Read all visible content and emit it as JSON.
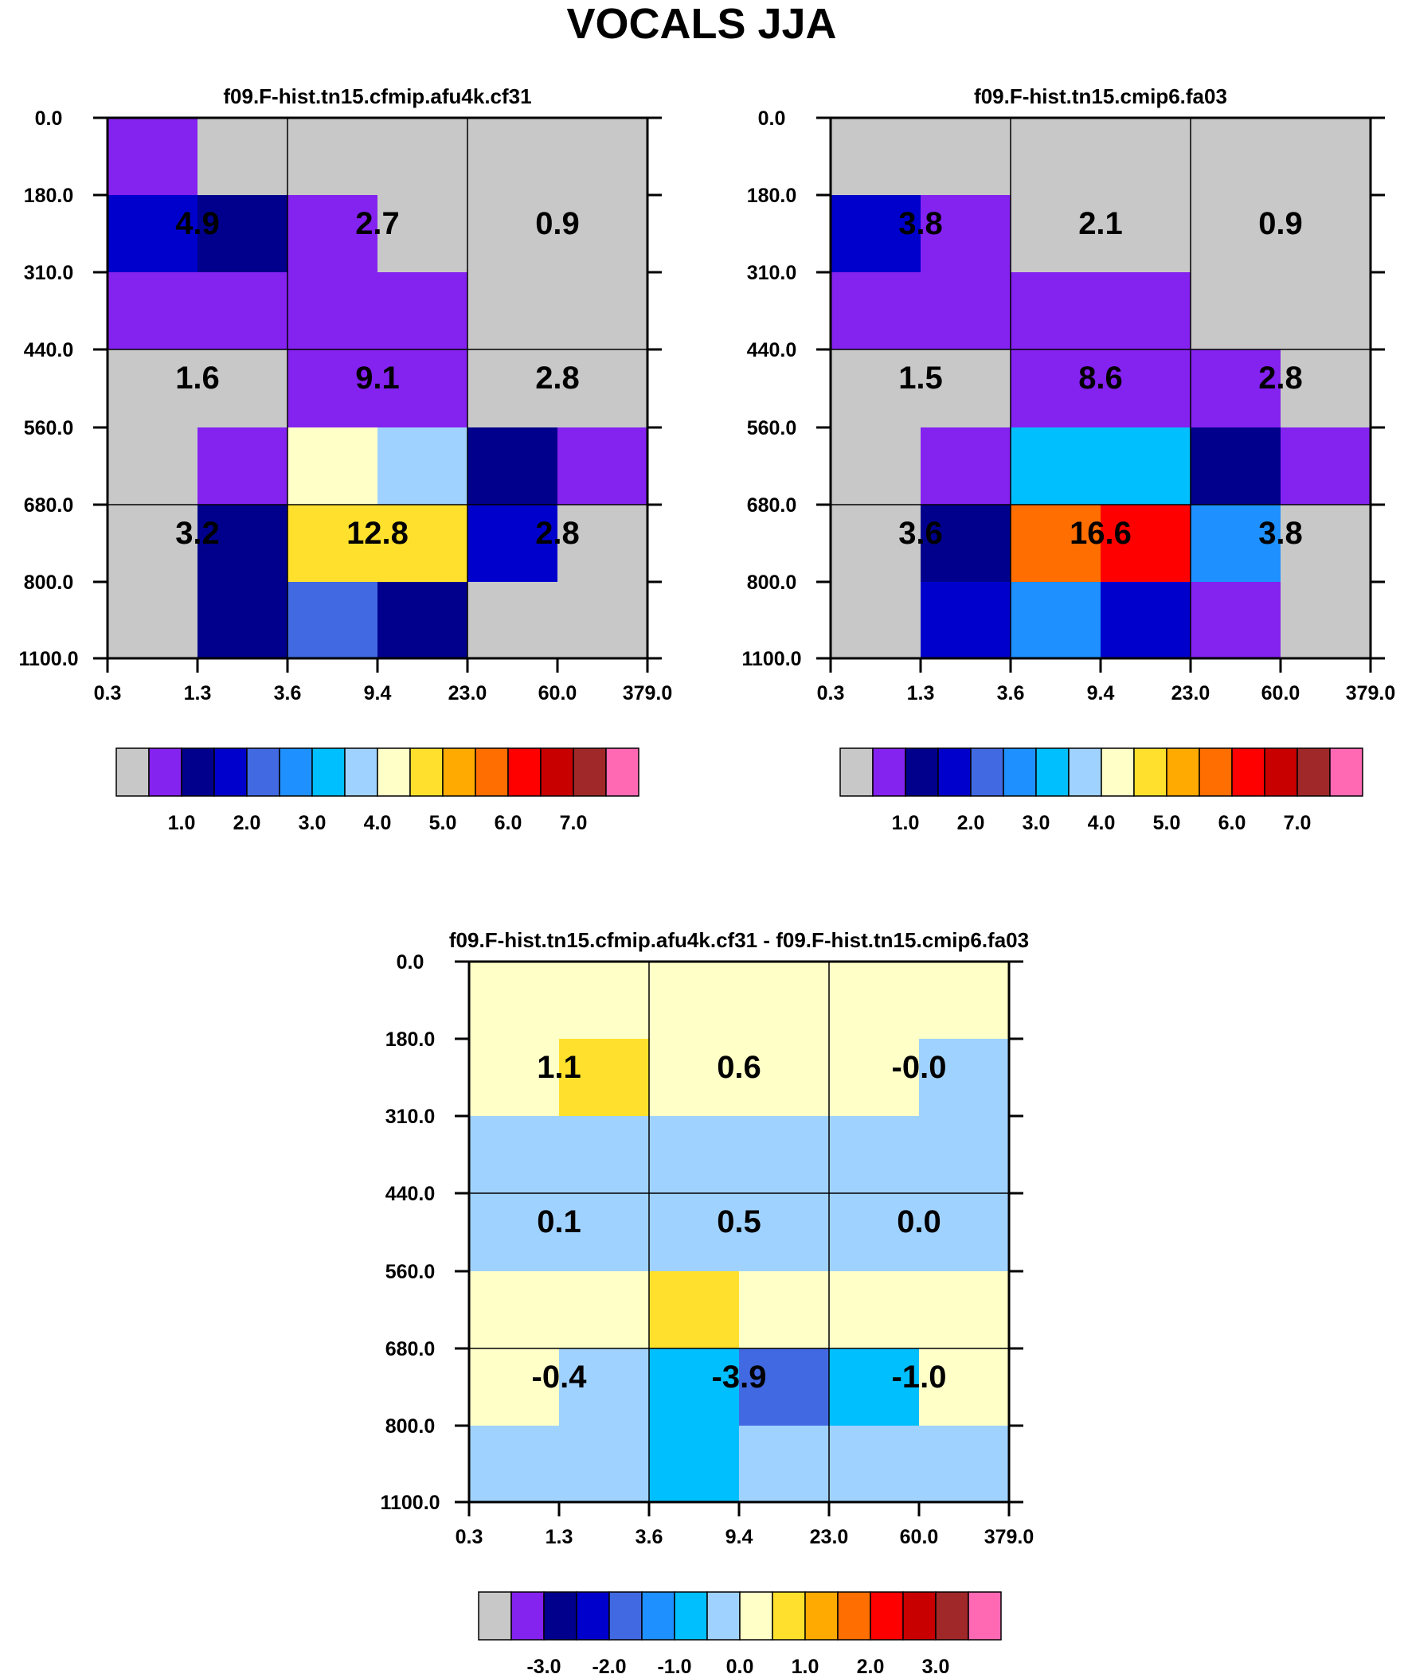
{
  "figure_title": "VOCALS JJA",
  "palette": [
    "#c8c8c8",
    "#8422f0",
    "#00008c",
    "#0000cd",
    "#4169e1",
    "#1e90ff",
    "#00bfff",
    "#a0d2ff",
    "#ffffc8",
    "#ffe12d",
    "#ffaa00",
    "#ff6e00",
    "#ff0000",
    "#c80000",
    "#a02828",
    "#ff69b4"
  ],
  "chart_data": [
    {
      "type": "heatmap",
      "title": "f09.F-hist.tn15.cfmip.afu4k.cf31",
      "x_ticks": [
        "0.3",
        "1.3",
        "3.6",
        "9.4",
        "23.0",
        "60.0",
        "379.0"
      ],
      "y_ticks": [
        "0.0",
        "180.0",
        "310.0",
        "440.0",
        "560.0",
        "680.0",
        "800.0",
        "1100.0"
      ],
      "cells": [
        [
          1,
          0,
          0,
          0,
          0,
          0
        ],
        [
          3,
          2,
          1,
          0,
          0,
          0
        ],
        [
          1,
          1,
          1,
          1,
          0,
          0
        ],
        [
          0,
          0,
          1,
          1,
          0,
          0
        ],
        [
          0,
          1,
          8,
          7,
          2,
          1
        ],
        [
          0,
          2,
          9,
          9,
          3,
          0
        ],
        [
          0,
          2,
          4,
          2,
          0,
          0
        ]
      ],
      "block_values": [
        [
          "4.9",
          "2.7",
          "0.9"
        ],
        [
          "1.6",
          "9.1",
          "2.8"
        ],
        [
          "3.2",
          "12.8",
          "2.8"
        ]
      ],
      "colorbar_labels": [
        "1.0",
        "2.0",
        "3.0",
        "4.0",
        "5.0",
        "6.0",
        "7.0"
      ]
    },
    {
      "type": "heatmap",
      "title": "f09.F-hist.tn15.cmip6.fa03",
      "x_ticks": [
        "0.3",
        "1.3",
        "3.6",
        "9.4",
        "23.0",
        "60.0",
        "379.0"
      ],
      "y_ticks": [
        "0.0",
        "180.0",
        "310.0",
        "440.0",
        "560.0",
        "680.0",
        "800.0",
        "1100.0"
      ],
      "cells": [
        [
          0,
          0,
          0,
          0,
          0,
          0
        ],
        [
          3,
          1,
          0,
          0,
          0,
          0
        ],
        [
          1,
          1,
          1,
          1,
          0,
          0
        ],
        [
          0,
          0,
          1,
          1,
          1,
          0
        ],
        [
          0,
          1,
          6,
          6,
          2,
          1
        ],
        [
          0,
          2,
          11,
          12,
          5,
          0
        ],
        [
          0,
          3,
          5,
          3,
          1,
          0
        ]
      ],
      "block_values": [
        [
          "3.8",
          "2.1",
          "0.9"
        ],
        [
          "1.5",
          "8.6",
          "2.8"
        ],
        [
          "3.6",
          "16.6",
          "3.8"
        ]
      ],
      "colorbar_labels": [
        "1.0",
        "2.0",
        "3.0",
        "4.0",
        "5.0",
        "6.0",
        "7.0"
      ]
    },
    {
      "type": "heatmap",
      "title": "f09.F-hist.tn15.cfmip.afu4k.cf31 - f09.F-hist.tn15.cmip6.fa03",
      "x_ticks": [
        "0.3",
        "1.3",
        "3.6",
        "9.4",
        "23.0",
        "60.0",
        "379.0"
      ],
      "y_ticks": [
        "0.0",
        "180.0",
        "310.0",
        "440.0",
        "560.0",
        "680.0",
        "800.0",
        "1100.0"
      ],
      "cells": [
        [
          8,
          8,
          8,
          8,
          8,
          8
        ],
        [
          8,
          9,
          8,
          8,
          8,
          7
        ],
        [
          7,
          7,
          7,
          7,
          7,
          7
        ],
        [
          7,
          7,
          7,
          7,
          7,
          7
        ],
        [
          8,
          8,
          9,
          8,
          8,
          8
        ],
        [
          8,
          7,
          6,
          4,
          6,
          8
        ],
        [
          7,
          7,
          6,
          7,
          7,
          7
        ]
      ],
      "block_values": [
        [
          "1.1",
          "0.6",
          "-0.0"
        ],
        [
          "0.1",
          "0.5",
          "0.0"
        ],
        [
          "-0.4",
          "-3.9",
          "-1.0"
        ]
      ],
      "colorbar_labels": [
        "-3.0",
        "-2.0",
        "-1.0",
        "0.0",
        "1.0",
        "2.0",
        "3.0"
      ]
    }
  ]
}
